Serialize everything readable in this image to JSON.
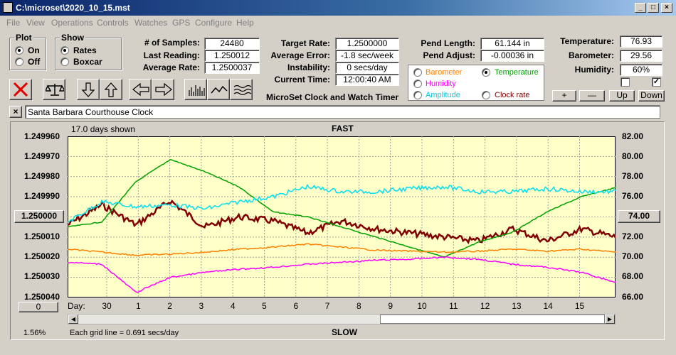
{
  "window": {
    "title": "C:\\microset\\2020_10_15.mst"
  },
  "menu": [
    "File",
    "View",
    "Operations",
    "Controls",
    "Watches",
    "GPS",
    "Configure",
    "Help"
  ],
  "plot_group": {
    "label": "Plot",
    "on": "On",
    "off": "Off",
    "selected": "On"
  },
  "show_group": {
    "label": "Show",
    "rates": "Rates",
    "boxcar": "Boxcar",
    "selected": "Rates"
  },
  "stats": {
    "samples_label": "# of Samples:",
    "samples": "24480",
    "last_reading_label": "Last Reading:",
    "last_reading": "1.250012",
    "avg_rate_label": "Average Rate:",
    "avg_rate": "1.2500037",
    "target_rate_label": "Target Rate:",
    "target_rate": "1.2500000",
    "avg_error_label": "Average Error:",
    "avg_error": "-1.8 sec/week",
    "instability_label": "Instability:",
    "instability": "0 secs/day",
    "current_time_label": "Current Time:",
    "current_time": "12:00:40 AM",
    "pend_length_label": "Pend Length:",
    "pend_length": "61.144 in",
    "pend_adjust_label": "Pend Adjust:",
    "pend_adjust": "-0.00036 in",
    "temperature_label": "Temperature:",
    "temperature": "76.93",
    "barometer_label": "Barometer:",
    "barometer": "29.56",
    "humidity_label": "Humidity:",
    "humidity": "60%"
  },
  "app_caption": "MicroSet Clock and Watch Timer",
  "overlay_options": {
    "barometer": "Barometer",
    "temperature": "Temperature",
    "humidity": "Humidity",
    "amplitude": "Amplitude",
    "clock_rate": "Clock rate",
    "selected": "Temperature"
  },
  "overlay_buttons": {
    "plus": "+",
    "minus": "—",
    "up": "Up",
    "down": "Down"
  },
  "clock_name": "Santa Barbara Courthouse Clock",
  "clear_button": "×",
  "chart_data": {
    "type": "line",
    "days_shown": "17.0 days shown",
    "top_label": "FAST",
    "bottom_label": "SLOW",
    "grid_note": "Each grid line = 0.691 secs/day",
    "scale_percent": "1.56%",
    "day_prefix": "Day:",
    "left_axis": {
      "ticks": [
        "1.249960",
        "1.249970",
        "1.249980",
        "1.249990",
        "1.250000",
        "1.250010",
        "1.250020",
        "1.250030",
        "1.250040"
      ],
      "center": "1.250000",
      "min": 1.24996,
      "max": 1.25004
    },
    "right_axis": {
      "ticks": [
        "82.00",
        "80.00",
        "78.00",
        "76.00",
        "74.00",
        "72.00",
        "70.00",
        "68.00",
        "66.00"
      ],
      "center": "74.00",
      "min": 66,
      "max": 82
    },
    "bottom_button": "0",
    "x_ticks": [
      "30",
      "1",
      "2",
      "3",
      "4",
      "5",
      "6",
      "7",
      "8",
      "9",
      "10",
      "11",
      "12",
      "13",
      "14",
      "15"
    ],
    "colors": {
      "background": "#ffffc8",
      "clock_rate": "#800000",
      "temperature": "#00a000",
      "amplitude": "#00e0f0",
      "barometer": "#ff8000",
      "humidity": "#ff00ff"
    },
    "series": [
      {
        "name": "Clock rate",
        "color": "#800000",
        "x": [
          0,
          1,
          2,
          3,
          4,
          5,
          6,
          7,
          8,
          9,
          10,
          11,
          12,
          13,
          14,
          15,
          16
        ],
        "y": [
          1.250004,
          1.249994,
          1.250004,
          1.249992,
          1.250005,
          1.25,
          1.250002,
          1.250008,
          1.250002,
          1.250006,
          1.250008,
          1.25001,
          1.250012,
          1.250006,
          1.250012,
          1.250006,
          1.25001
        ]
      },
      {
        "name": "Temperature",
        "color": "#00a000",
        "x": [
          0,
          1,
          2,
          3,
          4,
          5,
          6,
          7,
          8,
          9,
          10,
          11,
          12,
          13,
          14,
          15,
          16
        ],
        "y": [
          73.0,
          73.5,
          77.5,
          79.7,
          78.5,
          77.0,
          74.5,
          74.0,
          73.0,
          72.0,
          71.0,
          70.0,
          71.5,
          72.5,
          74.5,
          76.0,
          76.9
        ]
      },
      {
        "name": "Amplitude",
        "color": "#00e0f0",
        "x": [
          0,
          1,
          2,
          3,
          4,
          5,
          6,
          7,
          8,
          9,
          10,
          11,
          12,
          13,
          14,
          15,
          16
        ],
        "y": [
          73.5,
          75.5,
          75.0,
          75.2,
          74.8,
          75.5,
          76.0,
          77.0,
          76.5,
          76.5,
          76.8,
          77.0,
          76.5,
          76.5,
          76.8,
          76.5,
          76.5
        ]
      },
      {
        "name": "Barometer",
        "color": "#ff8000",
        "x": [
          0,
          1,
          2,
          3,
          4,
          5,
          6,
          7,
          8,
          9,
          10,
          11,
          12,
          13,
          14,
          15,
          16
        ],
        "y": [
          70.8,
          70.5,
          70.2,
          70.3,
          70.5,
          70.8,
          71.0,
          71.3,
          71.0,
          70.7,
          70.6,
          70.5,
          70.6,
          70.8,
          70.6,
          70.8,
          70.5
        ]
      },
      {
        "name": "Humidity",
        "color": "#ff00ff",
        "x": [
          0,
          1,
          2,
          3,
          4,
          5,
          6,
          7,
          8,
          9,
          10,
          11,
          12,
          13,
          14,
          15,
          16
        ],
        "y": [
          69.5,
          69.3,
          66.5,
          68.0,
          68.5,
          68.8,
          69.0,
          69.3,
          69.5,
          69.7,
          69.8,
          70.0,
          69.8,
          69.3,
          69.0,
          68.5,
          67.5
        ]
      }
    ]
  }
}
